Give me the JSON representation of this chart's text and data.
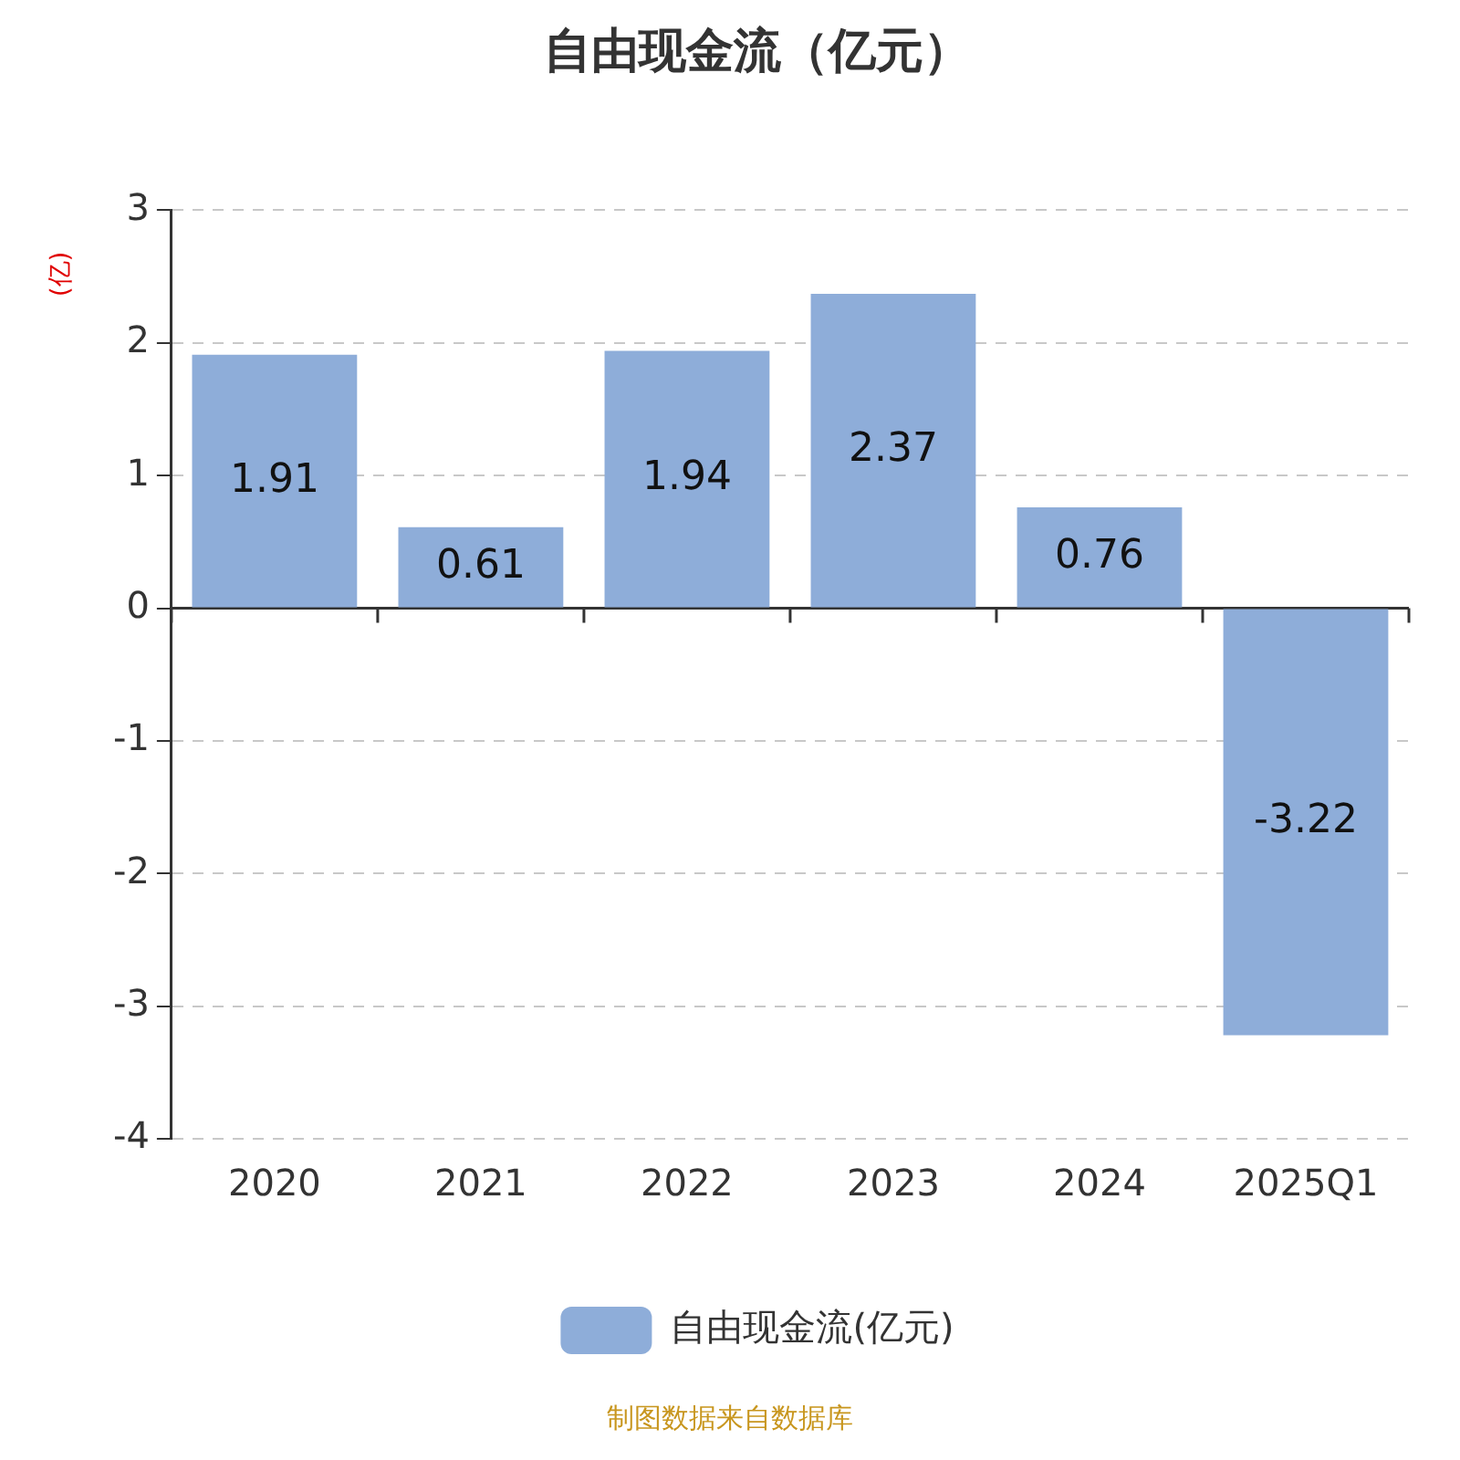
{
  "chart_data": {
    "type": "bar",
    "title": "自由现金流（亿元）",
    "ylabel": "(亿)",
    "categories": [
      "2020",
      "2021",
      "2022",
      "2023",
      "2024",
      "2025Q1"
    ],
    "series": [
      {
        "name": "自由现金流(亿元)",
        "color": "#8eadd9",
        "values": [
          1.91,
          0.61,
          1.94,
          2.37,
          0.76,
          -3.22
        ]
      }
    ],
    "ylim": [
      -4,
      3
    ],
    "yticks": [
      -4,
      -3,
      -2,
      -1,
      0,
      1,
      2,
      3
    ],
    "grid": "y",
    "legend": "bottom",
    "data_labels": true,
    "annotations": [
      "制图数据来自数据库"
    ]
  }
}
